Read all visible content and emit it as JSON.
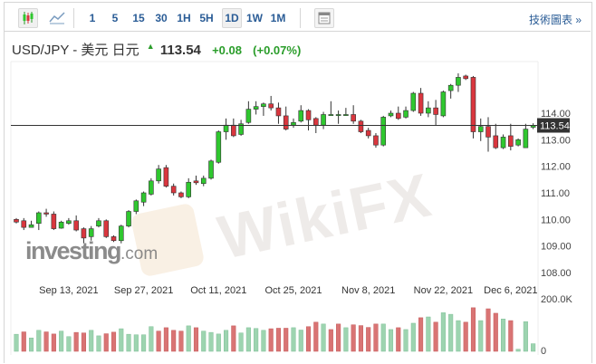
{
  "toolbar": {
    "chart_types": [
      {
        "icon": "candlestick-icon",
        "active": true
      },
      {
        "icon": "line-chart-icon",
        "active": false
      }
    ],
    "intervals": [
      {
        "label": "1",
        "active": false
      },
      {
        "label": "5",
        "active": false
      },
      {
        "label": "15",
        "active": false
      },
      {
        "label": "30",
        "active": false
      },
      {
        "label": "1H",
        "active": false
      },
      {
        "label": "5H",
        "active": false
      },
      {
        "label": "1D",
        "active": true
      },
      {
        "label": "1W",
        "active": false
      },
      {
        "label": "1M",
        "active": false
      }
    ],
    "layout_icon": "page-layout-icon",
    "technical_link": "技術圖表 »"
  },
  "header": {
    "pair": "USD/JPY - 美元 日元",
    "direction_icon": "up-arrow-icon",
    "price": "113.54",
    "change": "+0.08",
    "change_pct": "(+0.07%)"
  },
  "watermarks": {
    "investing": "investing",
    "investing_suffix": ".com",
    "wikifx": "WikiFX"
  },
  "colors": {
    "up": "#2fc72f",
    "down": "#d9363e",
    "vol_up": "#9dd4b0",
    "vol_down": "#d97474",
    "accent": "#2a5c96"
  },
  "chart_data": {
    "type": "candlestick",
    "current_price": 113.54,
    "current_price_label": "113.54",
    "price_axis": {
      "ticks": [
        114,
        113,
        112,
        111,
        110,
        109,
        108
      ],
      "labels": [
        "114.00",
        "113.00",
        "112.00",
        "111.00",
        "110.00",
        "109.00",
        "108.00"
      ]
    },
    "volume_axis": {
      "max_label": "200.0K",
      "min_label": "0",
      "max": 200
    },
    "x_labels": [
      {
        "label": "Sep 13, 2021",
        "index": 7
      },
      {
        "label": "Sep 27, 2021",
        "index": 17
      },
      {
        "label": "Oct 11, 2021",
        "index": 27
      },
      {
        "label": "Oct 25, 2021",
        "index": 37
      },
      {
        "label": "Nov 8, 2021",
        "index": 47
      },
      {
        "label": "Nov 22, 2021",
        "index": 57
      },
      {
        "label": "Dec 6, 2021",
        "index": 66
      }
    ],
    "ohlc": [
      [
        110.0,
        110.05,
        109.85,
        109.9
      ],
      [
        109.95,
        110.05,
        109.6,
        109.7
      ],
      [
        109.7,
        109.95,
        109.7,
        109.8
      ],
      [
        109.85,
        110.3,
        109.6,
        110.25
      ],
      [
        110.25,
        110.4,
        110.1,
        110.2
      ],
      [
        110.2,
        110.3,
        109.6,
        109.65
      ],
      [
        109.67,
        109.95,
        109.65,
        109.9
      ],
      [
        109.85,
        110.05,
        109.8,
        109.95
      ],
      [
        109.95,
        110.15,
        109.55,
        109.6
      ],
      [
        109.65,
        109.7,
        109.1,
        109.3
      ],
      [
        109.35,
        109.75,
        109.2,
        109.65
      ],
      [
        109.75,
        110.05,
        109.7,
        109.95
      ],
      [
        109.95,
        110.0,
        109.3,
        109.35
      ],
      [
        109.35,
        109.4,
        109.15,
        109.2
      ],
      [
        109.2,
        109.8,
        109.1,
        109.75
      ],
      [
        109.75,
        110.35,
        109.7,
        110.3
      ],
      [
        110.3,
        110.75,
        110.2,
        110.7
      ],
      [
        110.65,
        111.05,
        110.5,
        111.0
      ],
      [
        110.95,
        111.55,
        110.9,
        111.45
      ],
      [
        111.45,
        112.05,
        111.35,
        111.9
      ],
      [
        111.95,
        112.05,
        111.2,
        111.25
      ],
      [
        111.25,
        111.35,
        110.9,
        111.0
      ],
      [
        111.0,
        111.05,
        110.8,
        110.85
      ],
      [
        110.85,
        111.55,
        110.8,
        111.4
      ],
      [
        111.45,
        111.65,
        111.3,
        111.38
      ],
      [
        111.35,
        111.65,
        111.25,
        111.55
      ],
      [
        111.55,
        112.25,
        111.5,
        112.2
      ],
      [
        112.15,
        113.35,
        112.1,
        113.3
      ],
      [
        113.3,
        113.8,
        113.0,
        113.55
      ],
      [
        113.55,
        113.8,
        113.1,
        113.15
      ],
      [
        113.2,
        113.75,
        113.15,
        113.6
      ],
      [
        113.65,
        114.45,
        113.6,
        114.15
      ],
      [
        114.15,
        114.45,
        113.95,
        114.25
      ],
      [
        114.25,
        114.4,
        113.9,
        114.35
      ],
      [
        114.35,
        114.65,
        114.1,
        114.2
      ],
      [
        114.2,
        114.4,
        113.6,
        113.9
      ],
      [
        113.9,
        114.25,
        113.35,
        113.4
      ],
      [
        113.55,
        113.8,
        113.45,
        113.65
      ],
      [
        113.7,
        114.3,
        113.65,
        114.1
      ],
      [
        114.1,
        114.15,
        113.35,
        113.75
      ],
      [
        113.8,
        113.85,
        113.25,
        113.55
      ],
      [
        113.55,
        114.05,
        113.4,
        113.95
      ],
      [
        113.95,
        114.45,
        113.95,
        113.95
      ],
      [
        113.95,
        114.1,
        113.6,
        113.95
      ],
      [
        113.95,
        114.2,
        113.9,
        113.95
      ],
      [
        113.95,
        114.3,
        113.6,
        113.7
      ],
      [
        113.7,
        113.75,
        113.25,
        113.3
      ],
      [
        113.35,
        113.45,
        113.05,
        113.15
      ],
      [
        113.15,
        113.25,
        112.7,
        112.8
      ],
      [
        112.8,
        113.9,
        112.75,
        113.85
      ],
      [
        113.9,
        114.1,
        113.85,
        114.0
      ],
      [
        114.0,
        114.25,
        113.75,
        113.8
      ],
      [
        113.85,
        114.25,
        113.8,
        114.1
      ],
      [
        114.1,
        114.8,
        114.05,
        114.75
      ],
      [
        114.75,
        114.95,
        113.9,
        114.0
      ],
      [
        114.0,
        114.45,
        113.85,
        114.2
      ],
      [
        114.2,
        114.5,
        113.55,
        113.95
      ],
      [
        113.9,
        114.85,
        113.85,
        114.8
      ],
      [
        114.85,
        115.1,
        114.55,
        115.05
      ],
      [
        115.05,
        115.5,
        114.8,
        115.35
      ],
      [
        115.4,
        115.45,
        115.25,
        115.3
      ],
      [
        115.35,
        115.4,
        113.05,
        113.3
      ],
      [
        113.3,
        113.8,
        112.95,
        113.5
      ],
      [
        113.5,
        113.85,
        112.55,
        113.1
      ],
      [
        113.15,
        113.6,
        112.65,
        112.7
      ],
      [
        112.7,
        113.2,
        112.65,
        113.1
      ],
      [
        113.15,
        113.6,
        112.6,
        112.75
      ],
      [
        112.8,
        113.05,
        112.75,
        113.0
      ],
      [
        112.7,
        113.6,
        112.7,
        113.4
      ],
      [
        113.47,
        113.62,
        113.4,
        113.54
      ]
    ],
    "volume_k": [
      65,
      74,
      51,
      80,
      74,
      66,
      77,
      56,
      72,
      70,
      80,
      59,
      67,
      73,
      86,
      65,
      63,
      63,
      94,
      77,
      90,
      80,
      77,
      97,
      90,
      77,
      72,
      66,
      80,
      97,
      70,
      90,
      87,
      80,
      86,
      88,
      88,
      90,
      81,
      94,
      111,
      104,
      83,
      104,
      90,
      101,
      98,
      91,
      104,
      104,
      83,
      90,
      83,
      107,
      128,
      131,
      111,
      147,
      141,
      117,
      111,
      166,
      117,
      162,
      145,
      123,
      117,
      8,
      113,
      29
    ],
    "volume_up": [
      1,
      0,
      1,
      1,
      0,
      0,
      1,
      1,
      0,
      0,
      1,
      1,
      0,
      0,
      1,
      1,
      1,
      1,
      1,
      0,
      0,
      0,
      0,
      1,
      0,
      1,
      1,
      1,
      1,
      0,
      1,
      1,
      1,
      1,
      0,
      0,
      0,
      1,
      1,
      0,
      0,
      1,
      0,
      0,
      1,
      0,
      0,
      0,
      0,
      1,
      1,
      0,
      1,
      1,
      0,
      1,
      0,
      1,
      1,
      1,
      0,
      0,
      1,
      0,
      0,
      1,
      0,
      1,
      1,
      1
    ]
  }
}
